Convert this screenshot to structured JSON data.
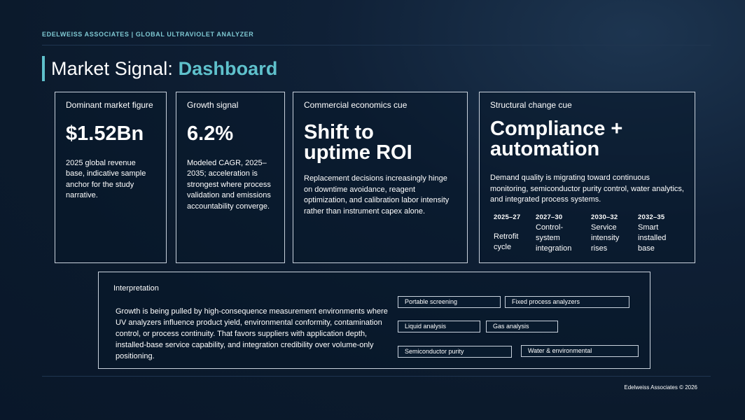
{
  "header": {
    "org": "EDELWEISS ASSOCIATES | GLOBAL ULTRAVIOLET ANALYZER",
    "title_prefix": "Market Signal: ",
    "title_accent": "Dashboard"
  },
  "cards": [
    {
      "label": "Dominant market figure",
      "value": "$1.52Bn",
      "desc": "2025 global revenue base, indicative sample anchor for the study narrative."
    },
    {
      "label": "Growth signal",
      "value": "6.2%",
      "desc": "Modeled CAGR, 2025–2035; acceleration is strongest where process validation and emissions accountability converge."
    },
    {
      "label": "Commercial economics cue",
      "value_line1": "Shift to",
      "value_line2": "uptime ROI",
      "desc": "Replacement decisions increasingly hinge on downtime avoidance, reagent optimization, and calibration labor intensity rather than instrument capex alone."
    },
    {
      "label": "Structural change cue",
      "value_line1": "Compliance +",
      "value_line2": "automation",
      "desc": "Demand quality is migrating toward continuous monitoring, semiconductor purity control, water analytics, and integrated process systems.",
      "timeline": [
        {
          "year": "2025–27",
          "line1": "Retrofit",
          "line2": "cycle",
          "line3": ""
        },
        {
          "year": "2027–30",
          "line1": "Control-",
          "line2": "system",
          "line3": "integration"
        },
        {
          "year": "2030–32",
          "line1": "Service",
          "line2": "intensity",
          "line3": "rises"
        },
        {
          "year": "2032–35",
          "line1": "Smart",
          "line2": "installed",
          "line3": "base"
        }
      ]
    }
  ],
  "interpretation": {
    "label": "Interpretation",
    "text": "Growth is being pulled by high-consequence measurement environments where UV analyzers influence product yield, environmental conformity, contamination control, or process continuity. That favors suppliers with application depth, installed-base service capability, and integration credibility over volume-only positioning.",
    "chips": [
      "Portable screening",
      "Fixed process analyzers",
      "Liquid analysis",
      "Gas analysis",
      "Semiconductor purity",
      "Water & environmental"
    ]
  },
  "footer": {
    "copyright": "Edelweiss Associates © 2026"
  },
  "colors": {
    "accent": "#5fc1cc",
    "org": "#7fc9d3",
    "border": "#c9d2dd"
  }
}
